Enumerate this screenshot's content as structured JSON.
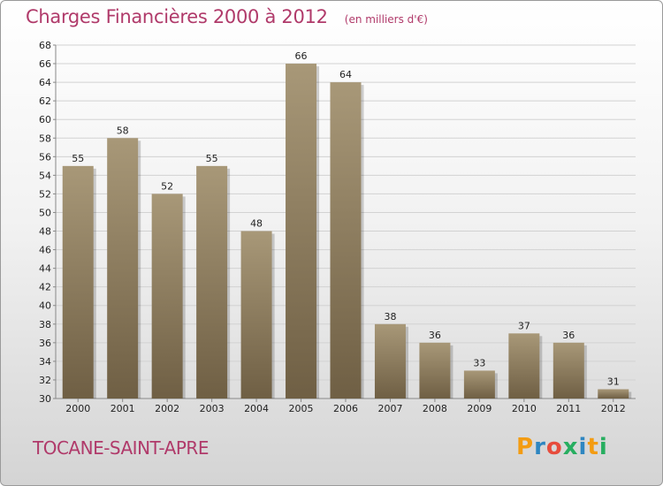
{
  "header": {
    "title": "Charges Financières 2000 à 2012",
    "subtitle": "(en milliers d'€)"
  },
  "footer": {
    "place": "TOCANE-SAINT-APRE",
    "logo": [
      "P",
      "r",
      "o",
      "x",
      "i",
      "t",
      "i"
    ],
    "logo_colors": [
      "#f39c12",
      "#2e86c1",
      "#e74c3c",
      "#27ae60",
      "#2e86c1",
      "#f39c12",
      "#27ae60"
    ]
  },
  "colors": {
    "bar_light": "#a89878",
    "bar_dark": "#6f5f44",
    "title": "#b03a6a"
  },
  "chart_data": {
    "type": "bar",
    "title": "Charges Financières 2000 à 2012",
    "subtitle": "(en milliers d'€)",
    "categories": [
      "2000",
      "2001",
      "2002",
      "2003",
      "2004",
      "2005",
      "2006",
      "2007",
      "2008",
      "2009",
      "2010",
      "2011",
      "2012"
    ],
    "values": [
      55,
      58,
      52,
      55,
      48,
      66,
      64,
      38,
      36,
      33,
      37,
      36,
      31
    ],
    "ylim": [
      30,
      68
    ],
    "yticks": [
      30,
      32,
      34,
      36,
      38,
      40,
      42,
      44,
      46,
      48,
      50,
      52,
      54,
      56,
      58,
      60,
      62,
      64,
      66,
      68
    ],
    "grid": true,
    "legend": "none"
  }
}
